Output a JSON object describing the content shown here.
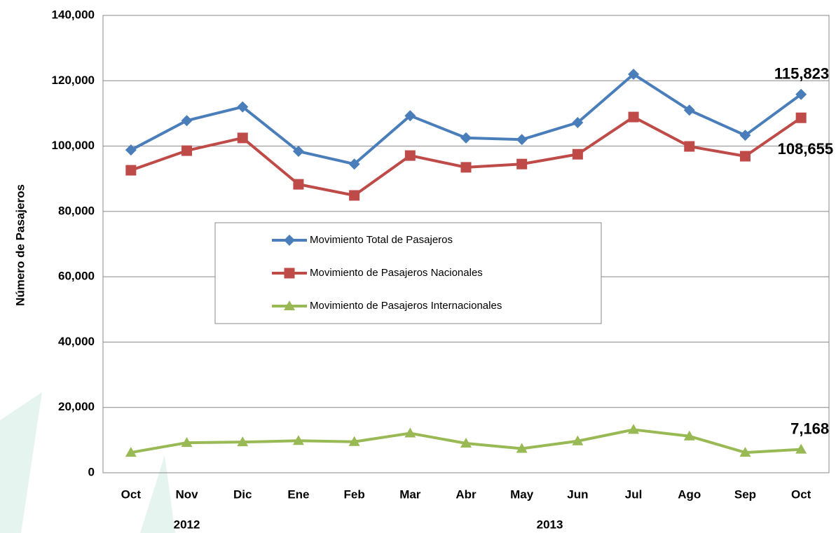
{
  "chart_data": {
    "type": "line",
    "y_label": "Número de Pasajeros",
    "categories": [
      "Oct",
      "Nov",
      "Dic",
      "Ene",
      "Feb",
      "Mar",
      "Abr",
      "May",
      "Jun",
      "Jul",
      "Ago",
      "Sep",
      "Oct"
    ],
    "groups": [
      {
        "label": "2012",
        "from": 0,
        "to": 2
      },
      {
        "label": "2013",
        "from": 3,
        "to": 12
      }
    ],
    "ylim": [
      0,
      140000
    ],
    "yticks": [
      0,
      {
        "value": 20000,
        "label": "20,000"
      },
      {
        "value": 40000,
        "label": "40,000"
      },
      {
        "value": 60000,
        "label": "60,000"
      },
      {
        "value": 80000,
        "label": "80,000"
      },
      {
        "value": 100000,
        "label": "100,000"
      },
      {
        "value": 120000,
        "label": "120,000"
      },
      {
        "value": 140000,
        "label": "140,000"
      }
    ],
    "grid": true,
    "series": [
      {
        "name": "Movimiento Total de Pasajeros",
        "color": "#4a7ebb",
        "marker": "diamond",
        "values": [
          98800,
          107800,
          112000,
          98400,
          94500,
          109300,
          102500,
          102000,
          107200,
          122000,
          111000,
          103300,
          115823
        ],
        "value_labels": [
          null,
          null,
          null,
          null,
          null,
          null,
          null,
          null,
          null,
          null,
          null,
          null,
          "115,823"
        ]
      },
      {
        "name": "Movimiento de Pasajeros Nacionales",
        "color": "#be4b48",
        "marker": "square",
        "values": [
          92600,
          98600,
          102500,
          88300,
          84900,
          97100,
          93500,
          94500,
          97500,
          108900,
          99900,
          96900,
          108655
        ],
        "value_labels": [
          null,
          null,
          null,
          null,
          null,
          null,
          null,
          null,
          null,
          null,
          null,
          null,
          "108,655"
        ]
      },
      {
        "name": "Movimiento de Pasajeros Internacionales",
        "color": "#98b954",
        "marker": "triangle",
        "values": [
          6200,
          9200,
          9400,
          9800,
          9500,
          12100,
          9000,
          7400,
          9700,
          13200,
          11200,
          6200,
          7168
        ],
        "value_labels": [
          null,
          null,
          null,
          null,
          null,
          null,
          null,
          null,
          null,
          null,
          null,
          null,
          "7,168"
        ]
      }
    ]
  }
}
